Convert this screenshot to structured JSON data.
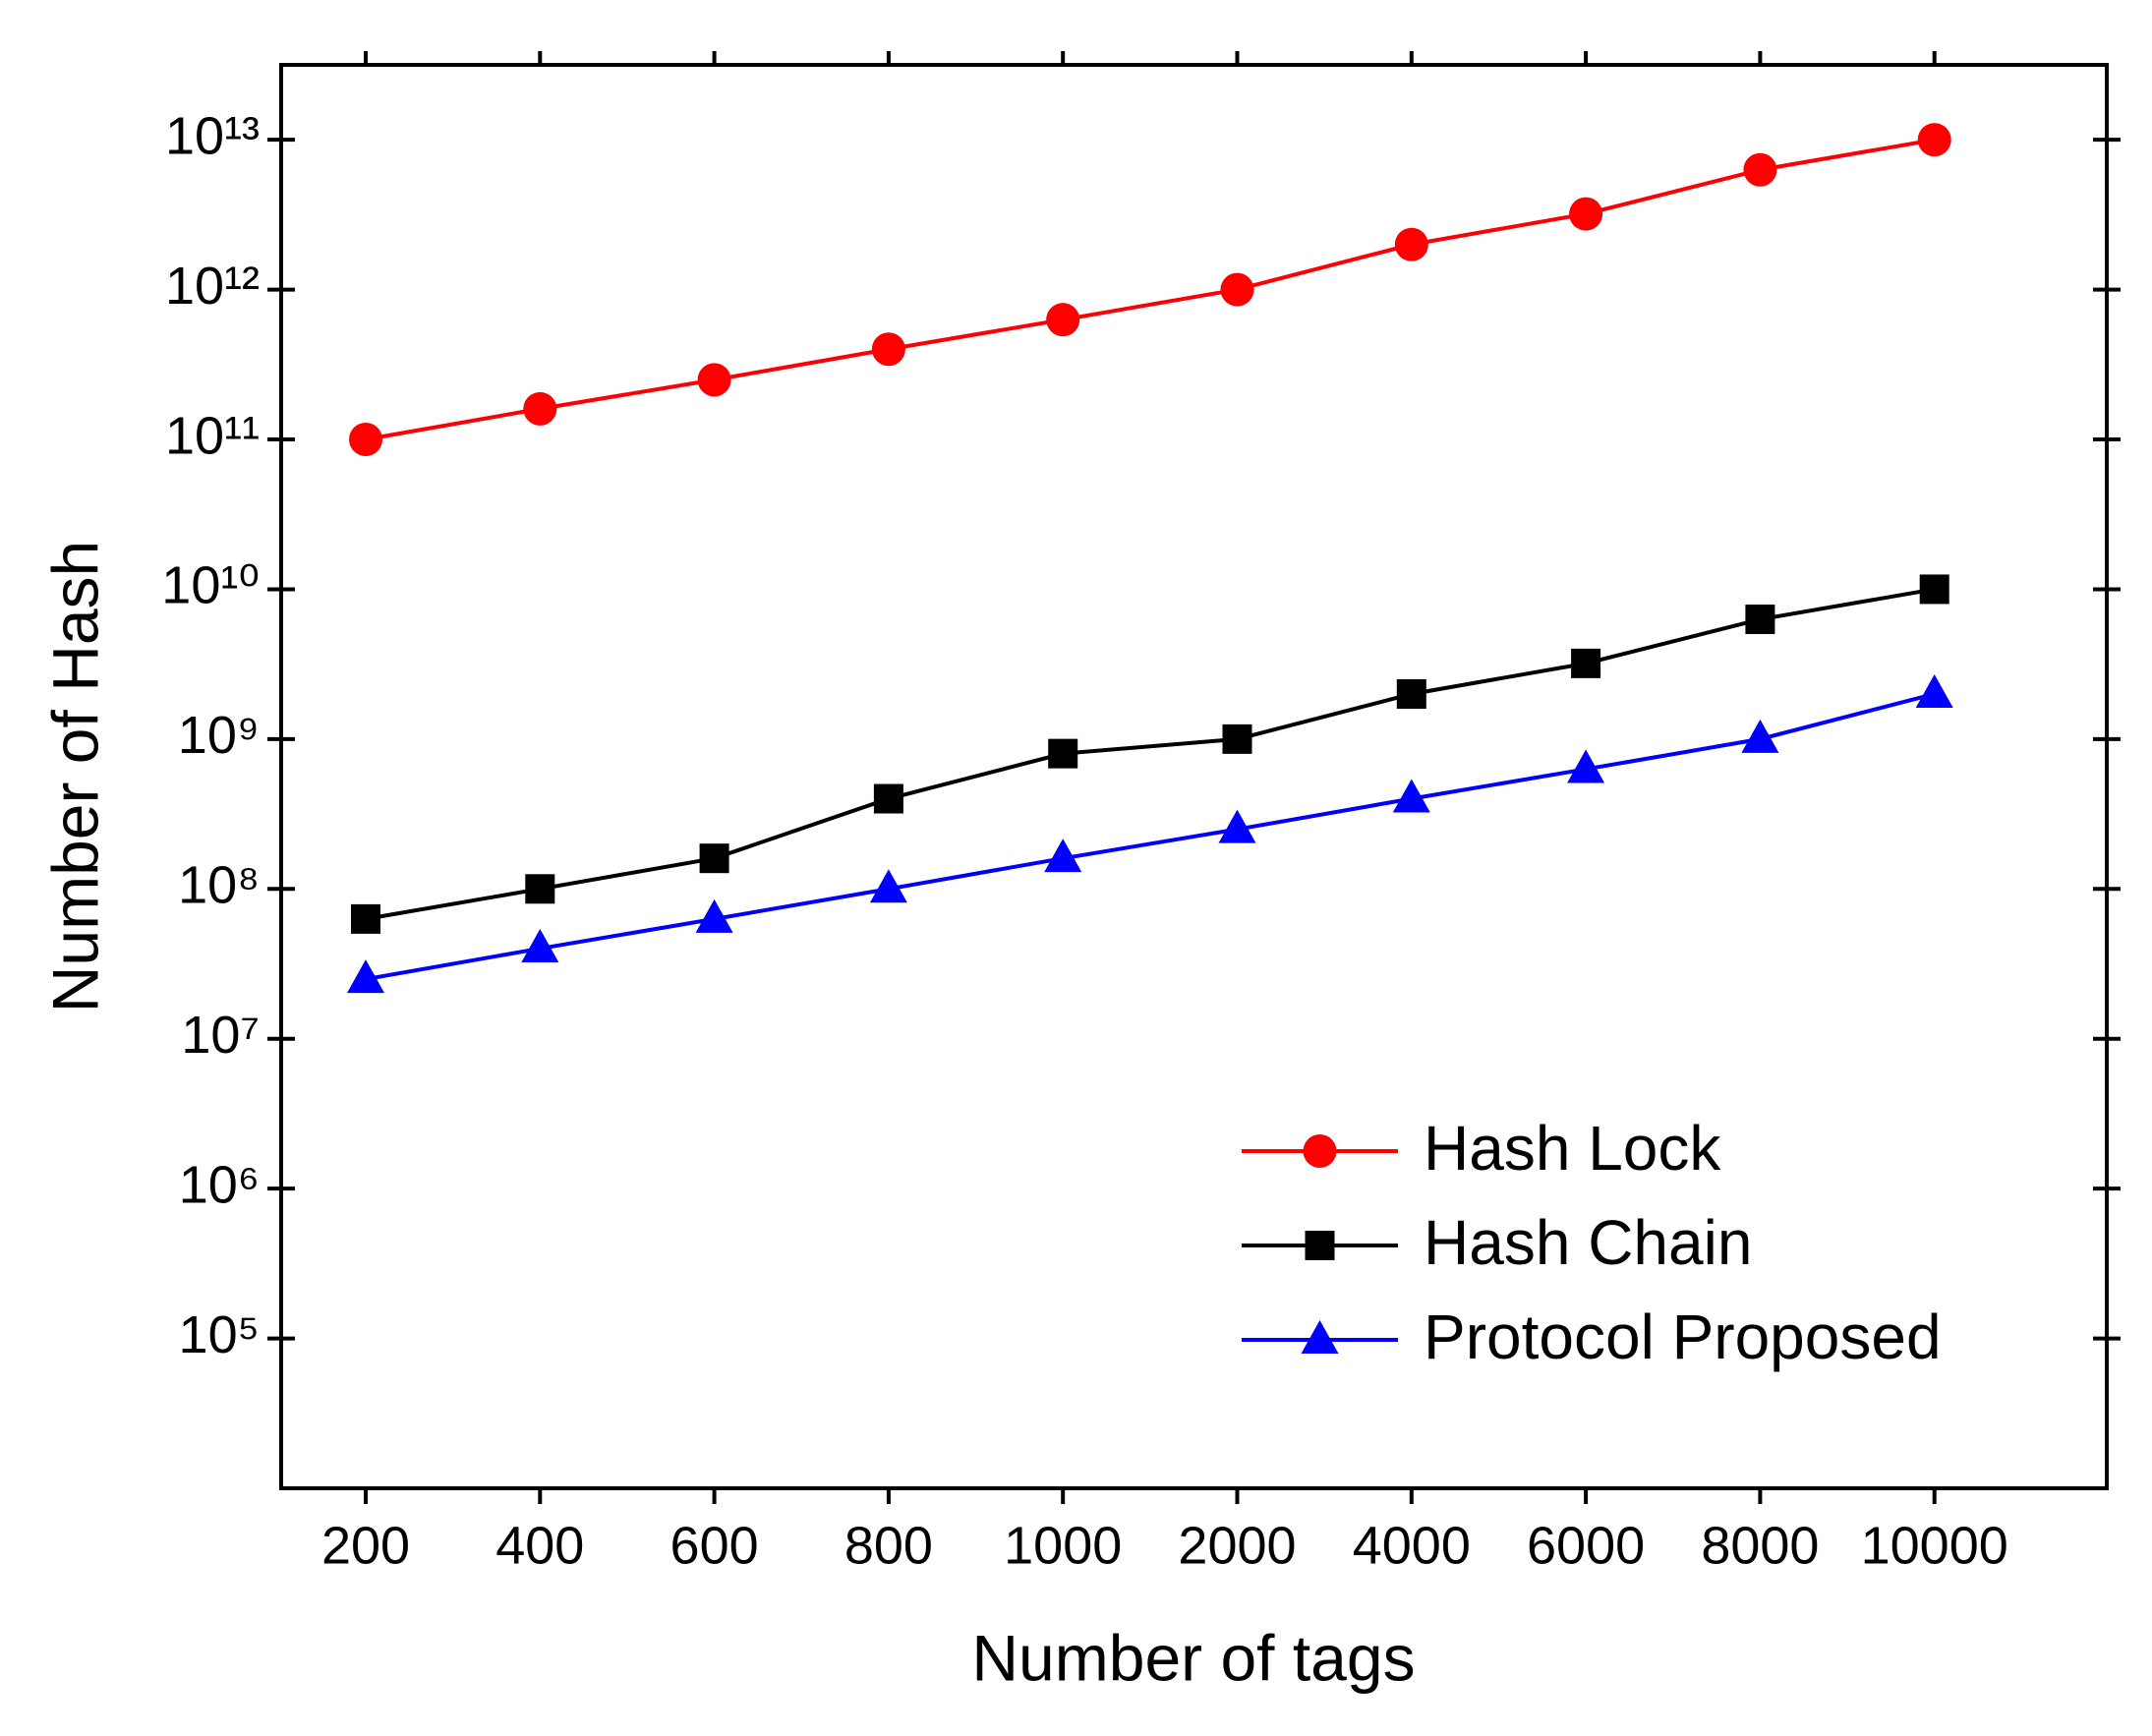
{
  "chart_data": {
    "type": "line",
    "x_label": "Number of tags",
    "y_label": "Number of Hash",
    "categories": [
      "200",
      "400",
      "600",
      "800",
      "1000",
      "2000",
      "4000",
      "6000",
      "8000",
      "10000"
    ],
    "series": [
      {
        "name": "Hash Lock",
        "color": "#ff0000",
        "marker": "circle",
        "values": [
          100000000000.0,
          160000000000.0,
          250000000000.0,
          400000000000.0,
          630000000000.0,
          1000000000000.0,
          2000000000000.0,
          3200000000000.0,
          6300000000000.0,
          10000000000000.0
        ]
      },
      {
        "name": "Hash Chain",
        "color": "#000000",
        "marker": "square",
        "values": [
          63000000.0,
          100000000.0,
          160000000.0,
          400000000.0,
          800000000.0,
          1000000000.0,
          2000000000.0,
          3200000000.0,
          6300000000.0,
          10000000000.0
        ]
      },
      {
        "name": "Protocol Proposed",
        "color": "#0000ff",
        "marker": "triangle",
        "values": [
          25000000.0,
          40000000.0,
          63000000.0,
          100000000.0,
          160000000.0,
          250000000.0,
          400000000.0,
          630000000.0,
          1000000000.0,
          2000000000.0
        ]
      }
    ],
    "ylog": true,
    "ylim": [
      10000,
      31600000000000
    ],
    "yticks": [
      {
        "value": 100000,
        "label": "10⁵"
      },
      {
        "value": 1000000,
        "label": "10⁶"
      },
      {
        "value": 10000000,
        "label": "10⁷"
      },
      {
        "value": 100000000,
        "label": "10⁸"
      },
      {
        "value": 1000000000,
        "label": "10⁹"
      },
      {
        "value": 10000000000,
        "label": "10¹⁰"
      },
      {
        "value": 100000000000,
        "label": "10¹¹"
      },
      {
        "value": 1000000000000,
        "label": "10¹²"
      },
      {
        "value": 10000000000000,
        "label": "10¹³"
      }
    ],
    "legend": "lower right",
    "grid": false
  }
}
